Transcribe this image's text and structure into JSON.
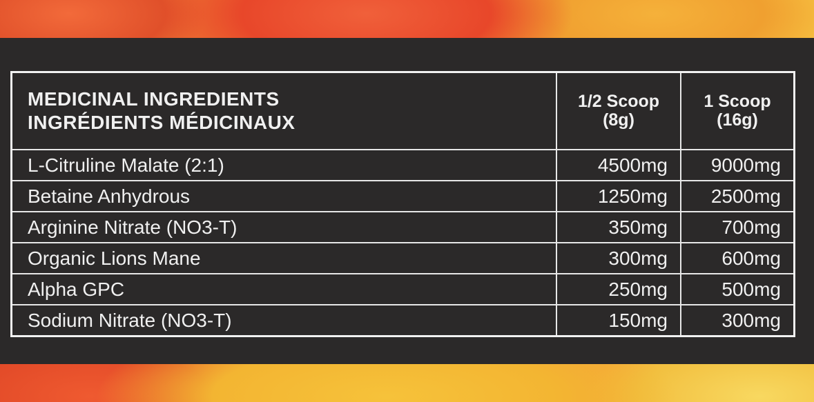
{
  "table": {
    "header": {
      "name_en": "MEDICINAL INGREDIENTS",
      "name_fr": "INGRÉDIENTS MÉDICINAUX",
      "half_scoop": "1/2 Scoop",
      "half_scoop_weight": "(8g)",
      "full_scoop": "1 Scoop",
      "full_scoop_weight": "(16g)"
    },
    "rows": [
      {
        "name": "L-Citruline Malate (2:1)",
        "half": "4500mg",
        "full": "9000mg"
      },
      {
        "name": "Betaine Anhydrous",
        "half": "1250mg",
        "full": "2500mg"
      },
      {
        "name": "Arginine Nitrate (NO3-T)",
        "half": "350mg",
        "full": "700mg"
      },
      {
        "name": "Organic Lions Mane",
        "half": "300mg",
        "full": "600mg"
      },
      {
        "name": "Alpha GPC",
        "half": "250mg",
        "full": "500mg"
      },
      {
        "name": "Sodium Nitrate (NO3-T)",
        "half": "150mg",
        "full": "300mg"
      }
    ]
  }
}
